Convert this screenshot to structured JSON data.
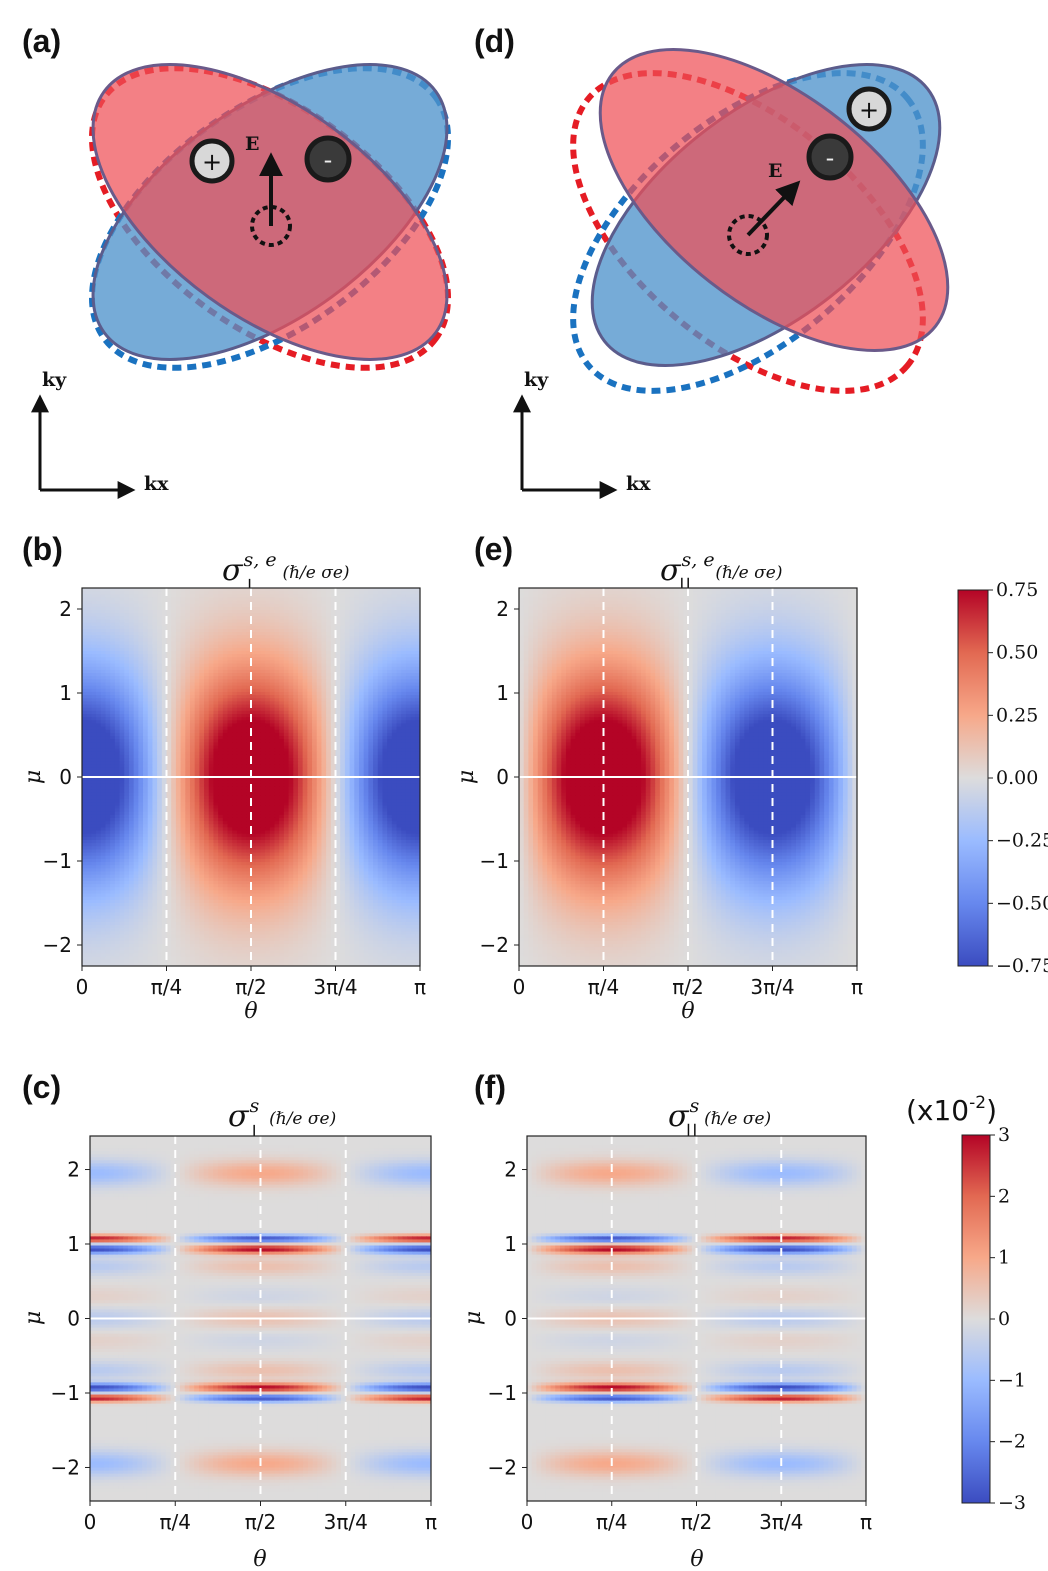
{
  "panels": {
    "a": {
      "label": "(a)",
      "field_label": "E",
      "plus": "+",
      "minus": "-",
      "kx": "kx",
      "ky": "ky"
    },
    "d": {
      "label": "(d)",
      "field_label": "E",
      "plus": "+",
      "minus": "-",
      "kx": "kx",
      "ky": "ky"
    }
  },
  "colors": {
    "red_fill": "#ee4f56",
    "blue_fill": "#4f93cc",
    "red_dash": "#e51c24",
    "blue_dash": "#1a72c0",
    "outline": "#5b5c8c",
    "cmap_low": "#3b4cc0",
    "cmap_mid": "#dcdcdc",
    "cmap_high": "#b40426"
  },
  "colorbars": [
    {
      "ticks": [
        "0.75",
        "0.50",
        "0.25",
        "0.00",
        "−0.25",
        "−0.50",
        "−0.75"
      ],
      "range": [
        -0.75,
        0.75
      ]
    },
    {
      "exponent_label": "(x10",
      "exponent_sup": "-2",
      "exponent_close": ")",
      "ticks": [
        "3",
        "2",
        "1",
        "0",
        "−1",
        "−2",
        "−3"
      ],
      "range": [
        -3,
        3
      ]
    }
  ],
  "chart_data": [
    {
      "panel": "(b)",
      "type": "heatmap",
      "title": "σ⊥s,e(ℏ/e σe)",
      "title_main": "σ",
      "title_sub": "⊥",
      "title_sup": "s, e",
      "title_factor": "(ℏ/e σe)",
      "xlabel": "θ",
      "ylabel": "μ",
      "xlim": [
        0,
        3.1416
      ],
      "ylim": [
        -2.25,
        2.25
      ],
      "xticks": [
        "0",
        "π/4",
        "π/2",
        "3π/4",
        "π"
      ],
      "yticks": [
        "2",
        "1",
        "0",
        "−1",
        "−2"
      ],
      "function": "-cos(2θ)·exp(-μ²/1.6)",
      "vmin": -0.75,
      "vmax": 0.75
    },
    {
      "panel": "(e)",
      "type": "heatmap",
      "title": "σ||s,e(ℏ/e σe)",
      "title_main": "σ",
      "title_sub": "||",
      "title_sup": "s, e",
      "title_factor": "(ℏ/e σe)",
      "xlabel": "θ",
      "ylabel": "μ",
      "xlim": [
        0,
        3.1416
      ],
      "ylim": [
        -2.25,
        2.25
      ],
      "xticks": [
        "0",
        "π/4",
        "π/2",
        "3π/4",
        "π"
      ],
      "yticks": [
        "2",
        "1",
        "0",
        "−1",
        "−2"
      ],
      "function": "sin(2θ)·exp(-μ²/1.6)",
      "vmin": -0.75,
      "vmax": 0.75
    },
    {
      "panel": "(c)",
      "type": "heatmap",
      "title": "σ⊥s(ℏ/e σe)",
      "title_main": "σ",
      "title_sub": "⊥",
      "title_sup": "s",
      "title_factor": "(ℏ/e σe)",
      "xlabel": "θ",
      "ylabel": "μ",
      "xlim": [
        0,
        3.1416
      ],
      "ylim": [
        -2.45,
        2.45
      ],
      "xticks": [
        "0",
        "π/4",
        "π/2",
        "3π/4",
        "π"
      ],
      "yticks": [
        "2",
        "1",
        "0",
        "−1",
        "−2"
      ],
      "function": "-cos(2θ)·f(μ), f with bands near μ=±1, ±2",
      "vmin": -3,
      "vmax": 3,
      "unit_scale": "x10^-2"
    },
    {
      "panel": "(f)",
      "type": "heatmap",
      "title": "σ||s(ℏ/e σe)",
      "title_main": "σ",
      "title_sub": "||",
      "title_sup": "s",
      "title_factor": "(ℏ/e σe)",
      "xlabel": "θ",
      "ylabel": "μ",
      "xlim": [
        0,
        3.1416
      ],
      "ylim": [
        -2.45,
        2.45
      ],
      "xticks": [
        "0",
        "π/4",
        "π/2",
        "3π/4",
        "π"
      ],
      "yticks": [
        "2",
        "1",
        "0",
        "−1",
        "−2"
      ],
      "function": "sin(2θ)·f(μ), f with bands near μ=±1, ±2",
      "vmin": -3,
      "vmax": 3,
      "unit_scale": "x10^-2"
    }
  ]
}
